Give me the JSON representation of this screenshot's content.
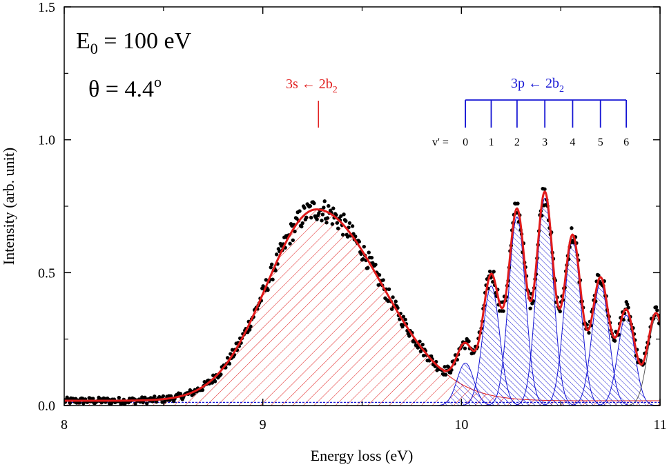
{
  "chart_data": {
    "type": "line",
    "xlabel": "Energy loss (eV)",
    "ylabel": "Intensity (arb. unit)",
    "xlim": [
      8,
      11
    ],
    "ylim": [
      0,
      1.5
    ],
    "x_ticks": [
      "8",
      "9",
      "10",
      "11"
    ],
    "y_ticks": [
      "0.0",
      "0.5",
      "1.0",
      "1.5"
    ],
    "annotations": {
      "energy": {
        "prefix": "E",
        "sub": "0",
        "rest": " = 100 eV"
      },
      "angle": {
        "text": "θ = 4.4",
        "sup": "o"
      }
    },
    "band_3s": {
      "label": "3s ← 2b",
      "label_sub": "2",
      "color": "#e11b1b",
      "marker_x": 9.28,
      "center": 9.27,
      "sigma_low": 0.25,
      "sigma_high": 0.33,
      "amplitude": 0.72
    },
    "band_3p": {
      "label": "3p ← 2b",
      "label_sub": "2",
      "color": "#1515d4",
      "v_prefix": "v' = ",
      "v_labels": [
        "0",
        "1",
        "2",
        "3",
        "4",
        "5",
        "6"
      ],
      "peaks": [
        {
          "v": "0",
          "x": 10.02,
          "amp": 0.16
        },
        {
          "v": "1",
          "x": 10.15,
          "amp": 0.45
        },
        {
          "v": "2",
          "x": 10.28,
          "amp": 0.71
        },
        {
          "v": "3",
          "x": 10.42,
          "amp": 0.78
        },
        {
          "v": "4",
          "x": 10.56,
          "amp": 0.62
        },
        {
          "v": "5",
          "x": 10.7,
          "amp": 0.46
        },
        {
          "v": "6",
          "x": 10.83,
          "amp": 0.34
        }
      ],
      "peak_sigma": 0.042,
      "extra_peak": {
        "x": 10.98,
        "amp": 0.33
      }
    },
    "series": [
      {
        "name": "experimental data",
        "style": "black dots",
        "color": "#000000"
      },
      {
        "name": "fitted sum",
        "style": "red line",
        "color": "#e11b1b"
      }
    ]
  }
}
